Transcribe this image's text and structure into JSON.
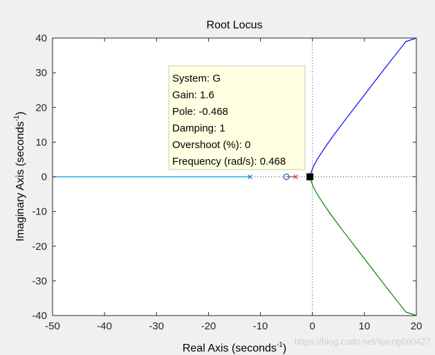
{
  "chart_data": {
    "type": "line",
    "title": "Root Locus",
    "xlabel": "Real Axis (seconds",
    "xlabel_sup": "-1",
    "xlabel_close": ")",
    "ylabel": "Imaginary Axis (seconds",
    "ylabel_sup": "-1",
    "ylabel_close": ")",
    "xlim": [
      -50,
      20
    ],
    "ylim": [
      -40,
      40
    ],
    "xticks": [
      -50,
      -40,
      -30,
      -20,
      -10,
      0,
      10,
      20
    ],
    "yticks": [
      -40,
      -30,
      -20,
      -10,
      0,
      10,
      20,
      30,
      40
    ],
    "grid": false,
    "series": [
      {
        "color": "#00a0e0",
        "x": [
          -50,
          -12
        ],
        "y": [
          0,
          0
        ]
      },
      {
        "color": "#c83232",
        "x": [
          -5,
          -3.2
        ],
        "y": [
          0,
          0
        ]
      },
      {
        "color": "#0000ff",
        "x": [
          -0.468,
          -0.3,
          0.2,
          1,
          2,
          3,
          4,
          5,
          6,
          8,
          10,
          12,
          14,
          16,
          18,
          20
        ],
        "y": [
          0,
          1,
          3,
          5.2,
          7.5,
          9.7,
          11.8,
          13.8,
          15.8,
          19.7,
          23.6,
          27.5,
          31.4,
          35.2,
          39,
          40
        ]
      },
      {
        "color": "#008000",
        "x": [
          -0.468,
          -0.3,
          0.2,
          1,
          2,
          3,
          4,
          5,
          6,
          8,
          10,
          12,
          14,
          16,
          18,
          20
        ],
        "y": [
          0,
          -1,
          -3,
          -5.2,
          -7.5,
          -9.7,
          -11.8,
          -13.8,
          -15.8,
          -19.7,
          -23.6,
          -27.5,
          -31.4,
          -35.2,
          -39,
          -40
        ]
      }
    ],
    "poles": [
      {
        "x": -12,
        "y": 0,
        "color": "#0070c0"
      },
      {
        "x": -3.2,
        "y": 0,
        "color": "#c83232"
      }
    ],
    "zeros": [
      {
        "x": -5,
        "y": 0,
        "color": "#0070c0"
      }
    ],
    "selected_point": {
      "x": -0.468,
      "y": 0
    },
    "datatip": {
      "lines": [
        "System: G",
        "Gain: 1.6",
        "Pole: -0.468",
        "Damping: 1",
        "Overshoot (%): 0",
        "Frequency (rad/s): 0.468"
      ]
    },
    "watermark": "https://blog.csdn.net/lipengfai0427"
  }
}
